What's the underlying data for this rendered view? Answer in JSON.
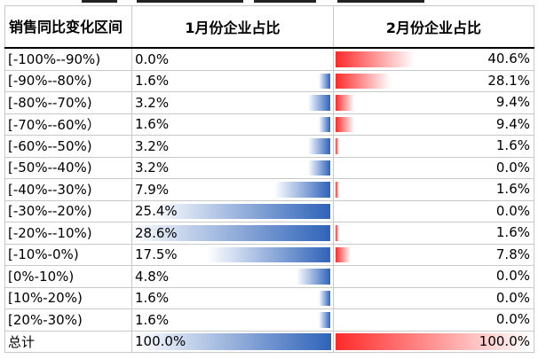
{
  "table": {
    "headers": [
      "销售同比变化区间",
      "1月份企业占比",
      "2月份企业占比"
    ],
    "rows": [
      {
        "range": "[-100%--90%)",
        "jan": "0.0%",
        "jan_value": 0.0,
        "feb": "40.6%",
        "feb_value": 40.6
      },
      {
        "range": "[-90%--80%)",
        "jan": "1.6%",
        "jan_value": 1.6,
        "feb": "28.1%",
        "feb_value": 28.1
      },
      {
        "range": "[-80%--70%)",
        "jan": "3.2%",
        "jan_value": 3.2,
        "feb": "9.4%",
        "feb_value": 9.4
      },
      {
        "range": "[-70%--60%）",
        "jan": "1.6%",
        "jan_value": 1.6,
        "feb": "9.4%",
        "feb_value": 9.4
      },
      {
        "range": "[-60%--50%)",
        "jan": "3.2%",
        "jan_value": 3.2,
        "feb": "1.6%",
        "feb_value": 1.6
      },
      {
        "range": "[-50%--40%)",
        "jan": "3.2%",
        "jan_value": 3.2,
        "feb": "0.0%",
        "feb_value": 0.0
      },
      {
        "range": "[-40%--30%)",
        "jan": "7.9%",
        "jan_value": 7.9,
        "feb": "1.6%",
        "feb_value": 1.6
      },
      {
        "range": "[-30%--20%)",
        "jan": "25.4%",
        "jan_value": 25.4,
        "feb": "0.0%",
        "feb_value": 0.0
      },
      {
        "range": "[-20%--10%)",
        "jan": "28.6%",
        "jan_value": 28.6,
        "feb": "1.6%",
        "feb_value": 1.6
      },
      {
        "range": "[-10%-0%)",
        "jan": "17.5%",
        "jan_value": 17.5,
        "feb": "7.8%",
        "feb_value": 7.8
      },
      {
        "range": "[0%-10%)",
        "jan": "4.8%",
        "jan_value": 4.8,
        "feb": "0.0%",
        "feb_value": 0.0
      },
      {
        "range": "[10%-20%)",
        "jan": "1.6%",
        "jan_value": 1.6,
        "feb": "0.0%",
        "feb_value": 0.0
      },
      {
        "range": "[20%-30%)",
        "jan": "1.6%",
        "jan_value": 1.6,
        "feb": "0.0%",
        "feb_value": 0.0
      }
    ],
    "total": {
      "label": "总计",
      "jan": "100.0%",
      "jan_value": 100.0,
      "feb": "100.0%",
      "feb_value": 100.0
    }
  },
  "colors": {
    "jan_bar": "#2f63b9",
    "feb_bar": "#ff2a2a"
  }
}
